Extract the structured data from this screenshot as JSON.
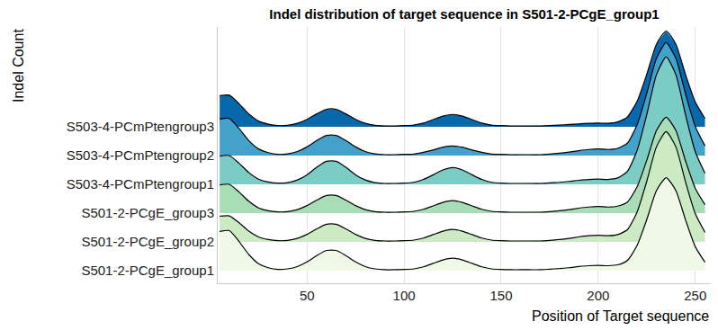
{
  "chart_data": {
    "type": "ridgeline",
    "title": "Indel distribution of target sequence in S501-2-PCgE_group1",
    "x_label": "Position of Target sequence",
    "y_label": "Indel Count",
    "x": [
      5,
      10,
      15,
      20,
      25,
      30,
      35,
      40,
      45,
      50,
      55,
      60,
      65,
      70,
      75,
      80,
      85,
      90,
      95,
      100,
      105,
      110,
      115,
      120,
      125,
      130,
      135,
      140,
      145,
      150,
      155,
      160,
      165,
      170,
      175,
      180,
      185,
      190,
      195,
      200,
      205,
      210,
      215,
      220,
      225,
      230,
      235,
      240,
      245,
      250,
      255
    ],
    "xlim": [
      4,
      258
    ],
    "xticks": [
      50,
      100,
      150,
      200,
      250
    ],
    "ylim": [
      -0.44,
      8.47
    ],
    "grid": true,
    "series": [
      {
        "name": "S501-2-PCgE_group1",
        "color": "#f0f9e8",
        "values": [
          1.36,
          1.39,
          1.01,
          0.56,
          0.24,
          0.1,
          0.04,
          0.06,
          0.14,
          0.3,
          0.52,
          0.7,
          0.7,
          0.52,
          0.3,
          0.14,
          0.06,
          0.03,
          0.03,
          0.04,
          0.06,
          0.13,
          0.25,
          0.37,
          0.43,
          0.37,
          0.25,
          0.13,
          0.06,
          0.04,
          0.03,
          0.03,
          0.03,
          0.03,
          0.05,
          0.07,
          0.1,
          0.14,
          0.17,
          0.18,
          0.17,
          0.2,
          0.35,
          0.87,
          1.77,
          2.78,
          3.23,
          2.78,
          1.76,
          0.83,
          0.29
        ]
      },
      {
        "name": "S501-2-PCgE_group2",
        "color": "#ccebc5",
        "values": [
          0.89,
          0.9,
          0.66,
          0.37,
          0.17,
          0.08,
          0.04,
          0.05,
          0.12,
          0.26,
          0.45,
          0.61,
          0.61,
          0.45,
          0.26,
          0.12,
          0.05,
          0.03,
          0.03,
          0.04,
          0.06,
          0.13,
          0.25,
          0.37,
          0.43,
          0.37,
          0.25,
          0.13,
          0.06,
          0.04,
          0.03,
          0.03,
          0.03,
          0.03,
          0.05,
          0.08,
          0.12,
          0.17,
          0.21,
          0.23,
          0.21,
          0.25,
          0.42,
          1.03,
          2.1,
          3.3,
          3.83,
          3.3,
          2.08,
          0.98,
          0.33
        ]
      },
      {
        "name": "S501-2-PCgE_group3",
        "color": "#a8ddb5",
        "values": [
          0.98,
          1.0,
          0.73,
          0.41,
          0.18,
          0.08,
          0.04,
          0.05,
          0.12,
          0.26,
          0.45,
          0.61,
          0.61,
          0.45,
          0.26,
          0.12,
          0.05,
          0.03,
          0.03,
          0.04,
          0.06,
          0.13,
          0.25,
          0.37,
          0.43,
          0.37,
          0.25,
          0.13,
          0.06,
          0.04,
          0.03,
          0.03,
          0.03,
          0.03,
          0.05,
          0.08,
          0.12,
          0.17,
          0.21,
          0.23,
          0.21,
          0.24,
          0.38,
          0.91,
          1.83,
          2.87,
          3.33,
          2.87,
          1.81,
          0.86,
          0.29
        ]
      },
      {
        "name": "S503-4-PCmPtengroup1",
        "color": "#7bccc4",
        "values": [
          0.98,
          1.0,
          0.73,
          0.41,
          0.18,
          0.08,
          0.04,
          0.06,
          0.15,
          0.33,
          0.59,
          0.8,
          0.8,
          0.59,
          0.33,
          0.15,
          0.06,
          0.03,
          0.03,
          0.04,
          0.07,
          0.17,
          0.33,
          0.5,
          0.58,
          0.5,
          0.33,
          0.17,
          0.07,
          0.04,
          0.03,
          0.03,
          0.03,
          0.03,
          0.05,
          0.07,
          0.1,
          0.14,
          0.17,
          0.18,
          0.17,
          0.22,
          0.45,
          1.17,
          2.42,
          3.81,
          4.43,
          3.81,
          2.41,
          1.13,
          0.38
        ]
      },
      {
        "name": "S503-4-PCmPtengroup2",
        "color": "#43a2ca",
        "values": [
          1.27,
          1.29,
          0.94,
          0.52,
          0.23,
          0.1,
          0.04,
          0.06,
          0.14,
          0.3,
          0.52,
          0.7,
          0.7,
          0.52,
          0.3,
          0.14,
          0.06,
          0.03,
          0.03,
          0.04,
          0.05,
          0.11,
          0.19,
          0.29,
          0.33,
          0.29,
          0.19,
          0.11,
          0.05,
          0.04,
          0.03,
          0.03,
          0.03,
          0.03,
          0.05,
          0.08,
          0.12,
          0.17,
          0.21,
          0.23,
          0.21,
          0.25,
          0.43,
          1.06,
          2.16,
          3.38,
          3.93,
          3.38,
          2.14,
          1.01,
          0.34
        ]
      },
      {
        "name": "S503-4-PCmPtengroup3",
        "color": "#0868ac",
        "values": [
          1.08,
          1.1,
          0.8,
          0.45,
          0.2,
          0.09,
          0.04,
          0.05,
          0.12,
          0.26,
          0.45,
          0.61,
          0.61,
          0.45,
          0.26,
          0.12,
          0.05,
          0.03,
          0.03,
          0.04,
          0.06,
          0.13,
          0.25,
          0.37,
          0.43,
          0.37,
          0.25,
          0.13,
          0.06,
          0.04,
          0.03,
          0.03,
          0.03,
          0.03,
          0.04,
          0.06,
          0.08,
          0.1,
          0.12,
          0.13,
          0.12,
          0.17,
          0.34,
          0.88,
          1.82,
          2.87,
          3.33,
          2.87,
          1.81,
          0.86,
          0.29
        ]
      }
    ]
  }
}
